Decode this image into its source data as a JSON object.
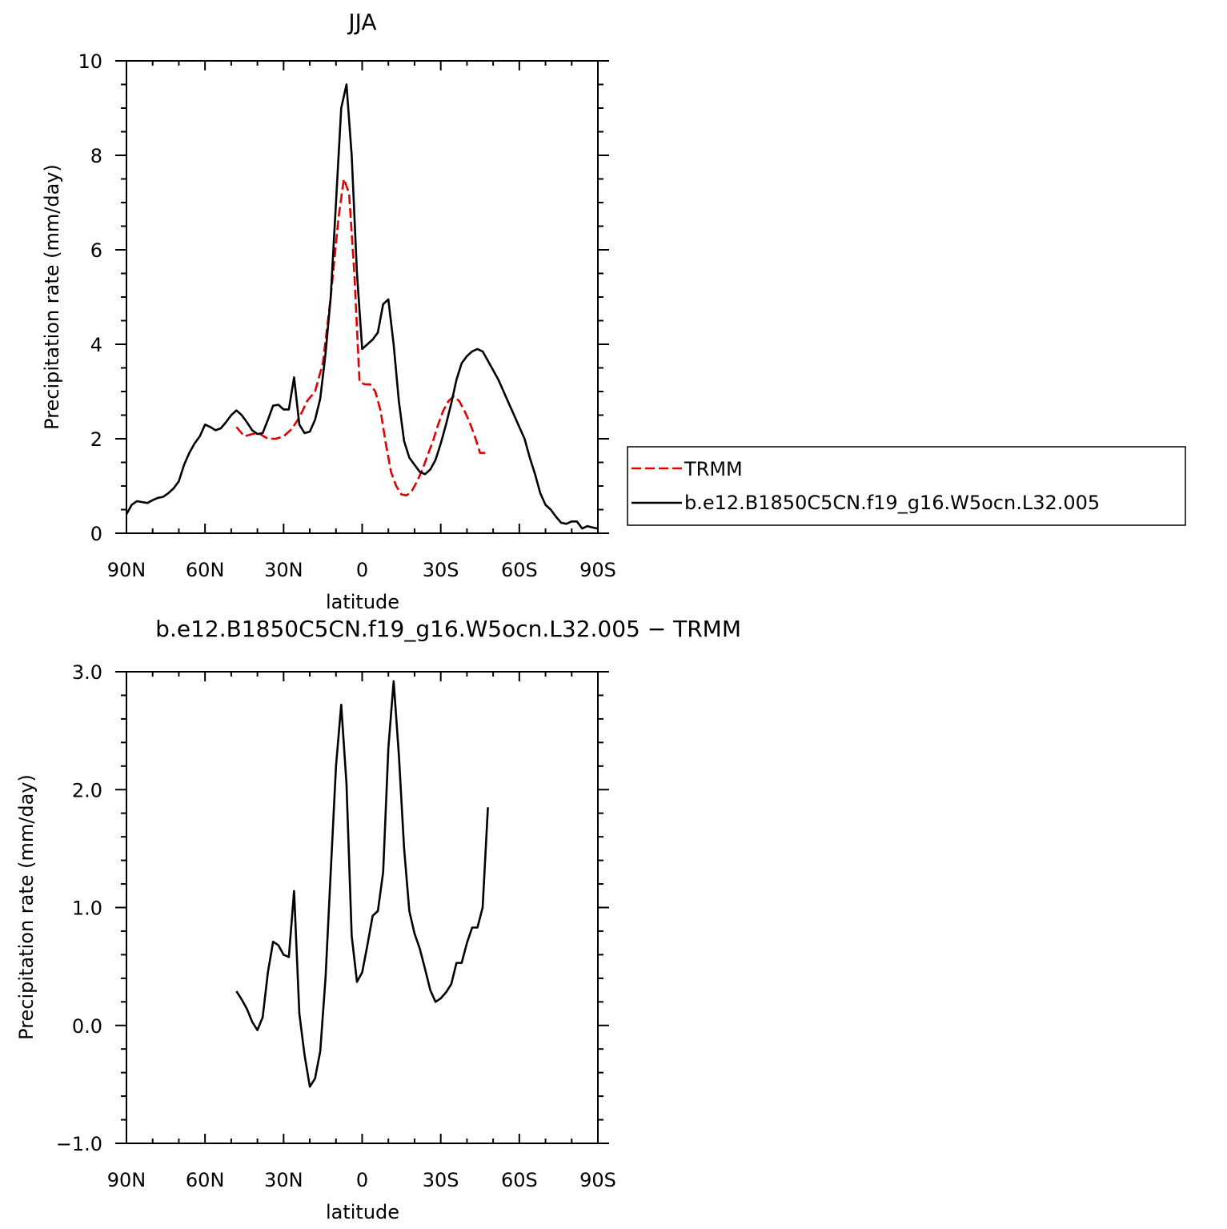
{
  "chart_data": [
    {
      "type": "line",
      "title": "JJA",
      "xlabel": "latitude",
      "ylabel": "Precipitation rate (mm/day)",
      "xlim": [
        90,
        -90
      ],
      "ylim": [
        0,
        10
      ],
      "x_ticks": [
        90,
        60,
        30,
        0,
        -30,
        -60,
        -90
      ],
      "x_tick_labels": [
        "90N",
        "60N",
        "30N",
        "0",
        "30S",
        "60S",
        "90S"
      ],
      "y_ticks": [
        0,
        2,
        4,
        6,
        8,
        10
      ],
      "y_tick_labels": [
        "0",
        "2",
        "4",
        "6",
        "8",
        "10"
      ],
      "legend": {
        "placement": "right"
      },
      "series": [
        {
          "name": "TRMM",
          "color": "#e00000",
          "style": "dashed",
          "x": [
            48,
            45,
            42,
            39,
            36,
            33,
            30,
            27,
            24,
            21,
            18,
            15,
            12,
            9,
            7,
            5,
            3,
            1,
            -1,
            -3,
            -5,
            -7,
            -9,
            -11,
            -13,
            -15,
            -17,
            -19,
            -21,
            -23,
            -25,
            -27,
            -29,
            -31,
            -33,
            -35,
            -37,
            -39,
            -41,
            -43,
            -45,
            -48
          ],
          "y": [
            2.25,
            2.05,
            2.1,
            2.1,
            2.0,
            2.0,
            2.05,
            2.2,
            2.45,
            2.8,
            3.0,
            3.6,
            5.0,
            6.7,
            7.5,
            7.2,
            5.5,
            3.2,
            3.15,
            3.15,
            3.0,
            2.6,
            1.9,
            1.3,
            1.0,
            0.82,
            0.8,
            0.9,
            1.1,
            1.35,
            1.65,
            1.95,
            2.3,
            2.6,
            2.8,
            2.9,
            2.8,
            2.6,
            2.35,
            2.05,
            1.7,
            1.7
          ]
        },
        {
          "name": "b.e12.B1850C5CN.f19_g16.W5ocn.L32.005",
          "color": "#000000",
          "style": "solid",
          "x": [
            90,
            88,
            86,
            84,
            82,
            80,
            78,
            76,
            74,
            72,
            70,
            68,
            66,
            64,
            62,
            60,
            58,
            56,
            54,
            52,
            50,
            48,
            46,
            44,
            42,
            40,
            38,
            36,
            34,
            32,
            30,
            28,
            26,
            24,
            22,
            20,
            18,
            16,
            14,
            12,
            10,
            8,
            6,
            4,
            2,
            0,
            -2,
            -4,
            -6,
            -8,
            -10,
            -12,
            -14,
            -16,
            -18,
            -20,
            -22,
            -24,
            -26,
            -28,
            -30,
            -32,
            -34,
            -36,
            -38,
            -40,
            -42,
            -44,
            -46,
            -48,
            -50,
            -52,
            -54,
            -56,
            -58,
            -60,
            -62,
            -64,
            -66,
            -68,
            -70,
            -72,
            -74,
            -76,
            -78,
            -80,
            -82,
            -84,
            -86,
            -88,
            -90
          ],
          "y": [
            0.4,
            0.6,
            0.68,
            0.66,
            0.64,
            0.7,
            0.75,
            0.77,
            0.85,
            0.95,
            1.1,
            1.45,
            1.7,
            1.9,
            2.05,
            2.3,
            2.25,
            2.18,
            2.22,
            2.35,
            2.5,
            2.6,
            2.5,
            2.35,
            2.18,
            2.1,
            2.12,
            2.4,
            2.7,
            2.72,
            2.62,
            2.62,
            3.3,
            2.3,
            2.12,
            2.15,
            2.4,
            2.85,
            3.8,
            5.0,
            7.0,
            9.0,
            9.5,
            8.0,
            5.5,
            3.9,
            4.0,
            4.1,
            4.25,
            4.85,
            4.95,
            4.0,
            2.8,
            1.95,
            1.6,
            1.45,
            1.3,
            1.25,
            1.35,
            1.55,
            1.9,
            2.3,
            2.75,
            3.25,
            3.6,
            3.75,
            3.85,
            3.9,
            3.85,
            3.65,
            3.45,
            3.25,
            3.0,
            2.75,
            2.5,
            2.25,
            2.0,
            1.6,
            1.25,
            0.85,
            0.6,
            0.5,
            0.35,
            0.22,
            0.2,
            0.25,
            0.25,
            0.1,
            0.15,
            0.12,
            0.1
          ]
        }
      ]
    },
    {
      "type": "line",
      "title": "b.e12.B1850C5CN.f19_g16.W5ocn.L32.005 − TRMM",
      "xlabel": "latitude",
      "ylabel": "Precipitation rate (mm/day)",
      "xlim": [
        90,
        -90
      ],
      "ylim": [
        -1,
        3
      ],
      "x_ticks": [
        90,
        60,
        30,
        0,
        -30,
        -60,
        -90
      ],
      "x_tick_labels": [
        "90N",
        "60N",
        "30N",
        "0",
        "30S",
        "60S",
        "90S"
      ],
      "y_ticks": [
        -1,
        0,
        1,
        2,
        3
      ],
      "y_tick_labels": [
        "−1.0",
        "0.0",
        "1.0",
        "2.0",
        "3.0"
      ],
      "series": [
        {
          "color": "#000000",
          "style": "solid",
          "x": [
            48,
            46,
            44,
            42,
            40,
            38,
            36,
            34,
            32,
            30,
            28,
            26,
            24,
            22,
            20,
            18,
            16,
            14,
            12,
            10,
            8,
            6,
            4,
            2,
            0,
            -2,
            -4,
            -6,
            -8,
            -10,
            -12,
            -14,
            -16,
            -18,
            -20,
            -22,
            -24,
            -26,
            -28,
            -30,
            -32,
            -34,
            -36,
            -38,
            -40,
            -42,
            -44,
            -46,
            -48
          ],
          "y": [
            0.29,
            0.22,
            0.14,
            0.03,
            -0.04,
            0.07,
            0.45,
            0.71,
            0.68,
            0.6,
            0.58,
            1.14,
            0.1,
            -0.25,
            -0.52,
            -0.45,
            -0.22,
            0.4,
            1.3,
            2.2,
            2.72,
            2.05,
            0.76,
            0.37,
            0.45,
            0.68,
            0.93,
            0.97,
            1.3,
            2.35,
            2.92,
            2.3,
            1.5,
            0.97,
            0.78,
            0.65,
            0.48,
            0.3,
            0.2,
            0.23,
            0.28,
            0.35,
            0.53,
            0.53,
            0.7,
            0.83,
            0.83,
            1.0,
            1.85
          ]
        }
      ]
    }
  ]
}
